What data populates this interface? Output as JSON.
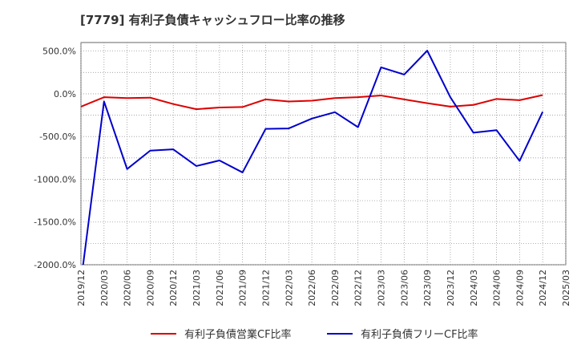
{
  "chart_data": {
    "type": "line",
    "title": "[7779]  有利子負債キャッシュフロー比率の推移",
    "xlabel": "",
    "ylabel": "",
    "ylim": [
      -2000,
      600
    ],
    "yticks": [
      500,
      0,
      -500,
      -1000,
      -1500,
      -2000
    ],
    "ytick_labels": [
      "500.0%",
      "0.0%",
      "-500.0%",
      "-1000.0%",
      "-1500.0%",
      "-2000.0%"
    ],
    "x_ticks": [
      "2019/12",
      "2020/03",
      "2020/06",
      "2020/09",
      "2020/12",
      "2021/03",
      "2021/06",
      "2021/09",
      "2021/12",
      "2022/03",
      "2022/06",
      "2022/09",
      "2022/12",
      "2023/03",
      "2023/06",
      "2023/09",
      "2023/12",
      "2024/03",
      "2024/06",
      "2024/09",
      "2024/12",
      "2025/03"
    ],
    "grid": true,
    "legend_position": "bottom",
    "series": [
      {
        "name": "有利子負債営業CF比率",
        "color": "#dd0000",
        "x": [
          "2019/12",
          "2020/03",
          "2020/06",
          "2020/09",
          "2020/12",
          "2021/03",
          "2021/06",
          "2021/09",
          "2021/12",
          "2022/03",
          "2022/06",
          "2022/09",
          "2022/12",
          "2023/03",
          "2023/06",
          "2023/09",
          "2023/12",
          "2024/03",
          "2024/06",
          "2024/09",
          "2024/12"
        ],
        "values": [
          -150,
          -40,
          -50,
          -45,
          -120,
          -180,
          -160,
          -155,
          -65,
          -90,
          -80,
          -50,
          -40,
          -20,
          -65,
          -110,
          -150,
          -130,
          -60,
          -75,
          -15
        ]
      },
      {
        "name": "有利子負債フリーCF比率",
        "color": "#0000cc",
        "x": [
          "2020/03",
          "2020/06",
          "2020/09",
          "2020/12",
          "2021/03",
          "2021/06",
          "2021/09",
          "2021/12",
          "2022/03",
          "2022/06",
          "2022/09",
          "2022/12",
          "2023/03",
          "2023/06",
          "2023/09",
          "2023/12",
          "2024/03",
          "2024/06",
          "2024/09",
          "2024/12"
        ],
        "values": [
          -90,
          -880,
          -665,
          -650,
          -845,
          -780,
          -920,
          -410,
          -405,
          -290,
          -215,
          -390,
          310,
          225,
          505,
          -40,
          -455,
          -425,
          -785,
          -210
        ]
      }
    ],
    "clipped_segment": {
      "from_x": "2019/12",
      "from_value": -2200,
      "to_x": "2020/03",
      "to_value": -90
    }
  }
}
